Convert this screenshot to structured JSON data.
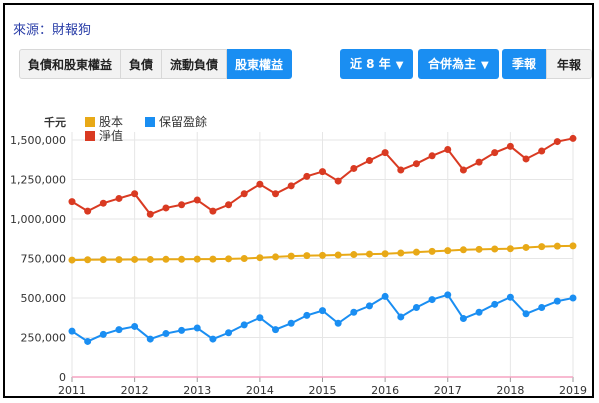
{
  "source_label": "來源：財報狗",
  "tabs": [
    "負債和股東權益",
    "負債",
    "流動負債",
    "股東權益"
  ],
  "active_tab_index": 3,
  "period_dropdown": "近 8 年",
  "scope_dropdown": "合併為主",
  "frequency_buttons": [
    "季報",
    "年報"
  ],
  "active_frequency_index": 0,
  "colors": {
    "accent": "#1a8ef2",
    "series": [
      "#e8a917",
      "#1a8ef2",
      "#d93a22"
    ],
    "zero_line": "#f5a3c2"
  },
  "chart_data": {
    "type": "line",
    "unit_label": "千元",
    "ylim": [
      0,
      1500000
    ],
    "yticks": [
      0,
      250000,
      500000,
      750000,
      1000000,
      1250000,
      1500000
    ],
    "ytick_labels": [
      "0",
      "250,000",
      "500,000",
      "750,000",
      "1,000,000",
      "1,250,000",
      "1,500,000"
    ],
    "xlim": [
      2011,
      2019
    ],
    "xticks": [
      "2011",
      "2012",
      "2013",
      "2014",
      "2015",
      "2016",
      "2017",
      "2018",
      "2019"
    ],
    "grid": true,
    "legend_position": "top-left",
    "series": [
      {
        "name": "股本",
        "points": [
          [
            2011.0,
            740000
          ],
          [
            2011.25,
            742000
          ],
          [
            2011.5,
            743000
          ],
          [
            2011.75,
            743000
          ],
          [
            2012.0,
            744000
          ],
          [
            2012.25,
            744000
          ],
          [
            2012.5,
            745000
          ],
          [
            2012.75,
            745000
          ],
          [
            2013.0,
            746000
          ],
          [
            2013.25,
            746000
          ],
          [
            2013.5,
            748000
          ],
          [
            2013.75,
            750000
          ],
          [
            2014.0,
            755000
          ],
          [
            2014.25,
            760000
          ],
          [
            2014.5,
            765000
          ],
          [
            2014.75,
            768000
          ],
          [
            2015.0,
            770000
          ],
          [
            2015.25,
            772000
          ],
          [
            2015.5,
            775000
          ],
          [
            2015.75,
            778000
          ],
          [
            2016.0,
            780000
          ],
          [
            2016.25,
            785000
          ],
          [
            2016.5,
            790000
          ],
          [
            2016.75,
            795000
          ],
          [
            2017.0,
            800000
          ],
          [
            2017.25,
            805000
          ],
          [
            2017.5,
            808000
          ],
          [
            2017.75,
            810000
          ],
          [
            2018.0,
            812000
          ],
          [
            2018.25,
            820000
          ],
          [
            2018.5,
            825000
          ],
          [
            2018.75,
            828000
          ],
          [
            2019.0,
            830000
          ]
        ]
      },
      {
        "name": "保留盈餘",
        "points": [
          [
            2011.0,
            290000
          ],
          [
            2011.25,
            225000
          ],
          [
            2011.5,
            270000
          ],
          [
            2011.75,
            300000
          ],
          [
            2012.0,
            320000
          ],
          [
            2012.25,
            240000
          ],
          [
            2012.5,
            275000
          ],
          [
            2012.75,
            295000
          ],
          [
            2013.0,
            310000
          ],
          [
            2013.25,
            240000
          ],
          [
            2013.5,
            280000
          ],
          [
            2013.75,
            330000
          ],
          [
            2014.0,
            375000
          ],
          [
            2014.25,
            300000
          ],
          [
            2014.5,
            340000
          ],
          [
            2014.75,
            390000
          ],
          [
            2015.0,
            420000
          ],
          [
            2015.25,
            340000
          ],
          [
            2015.5,
            410000
          ],
          [
            2015.75,
            450000
          ],
          [
            2016.0,
            510000
          ],
          [
            2016.25,
            380000
          ],
          [
            2016.5,
            440000
          ],
          [
            2016.75,
            490000
          ],
          [
            2017.0,
            520000
          ],
          [
            2017.25,
            370000
          ],
          [
            2017.5,
            410000
          ],
          [
            2017.75,
            460000
          ],
          [
            2018.0,
            505000
          ],
          [
            2018.25,
            400000
          ],
          [
            2018.5,
            440000
          ],
          [
            2018.75,
            480000
          ],
          [
            2019.0,
            500000
          ]
        ]
      },
      {
        "name": "淨值",
        "points": [
          [
            2011.0,
            1110000
          ],
          [
            2011.25,
            1050000
          ],
          [
            2011.5,
            1100000
          ],
          [
            2011.75,
            1130000
          ],
          [
            2012.0,
            1160000
          ],
          [
            2012.25,
            1030000
          ],
          [
            2012.5,
            1070000
          ],
          [
            2012.75,
            1090000
          ],
          [
            2013.0,
            1120000
          ],
          [
            2013.25,
            1050000
          ],
          [
            2013.5,
            1090000
          ],
          [
            2013.75,
            1160000
          ],
          [
            2014.0,
            1220000
          ],
          [
            2014.25,
            1160000
          ],
          [
            2014.5,
            1210000
          ],
          [
            2014.75,
            1270000
          ],
          [
            2015.0,
            1300000
          ],
          [
            2015.25,
            1240000
          ],
          [
            2015.5,
            1320000
          ],
          [
            2015.75,
            1370000
          ],
          [
            2016.0,
            1420000
          ],
          [
            2016.25,
            1310000
          ],
          [
            2016.5,
            1350000
          ],
          [
            2016.75,
            1400000
          ],
          [
            2017.0,
            1440000
          ],
          [
            2017.25,
            1310000
          ],
          [
            2017.5,
            1360000
          ],
          [
            2017.75,
            1420000
          ],
          [
            2018.0,
            1460000
          ],
          [
            2018.25,
            1380000
          ],
          [
            2018.5,
            1430000
          ],
          [
            2018.75,
            1490000
          ],
          [
            2019.0,
            1510000
          ]
        ]
      }
    ]
  }
}
